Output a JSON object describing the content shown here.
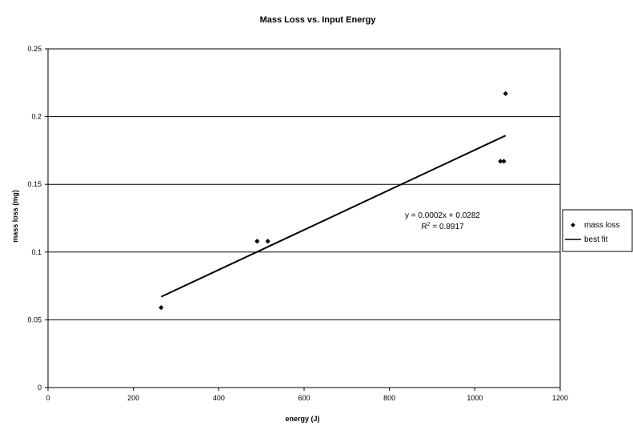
{
  "chart_data": {
    "type": "scatter",
    "title": "Mass Loss vs. Input Energy",
    "xlabel": "energy (J)",
    "ylabel": "mass loss (mg)",
    "xlim": [
      0,
      1200
    ],
    "ylim": [
      0,
      0.25
    ],
    "x_ticks": [
      0,
      200,
      400,
      600,
      800,
      1000,
      1200
    ],
    "y_ticks": [
      0,
      0.05,
      0.1,
      0.15,
      0.2,
      0.25
    ],
    "x_tick_labels": [
      "0",
      "200",
      "400",
      "600",
      "800",
      "1000",
      "1200"
    ],
    "y_tick_labels": [
      "0",
      "0.05",
      "0.1",
      "0.15",
      "0.2",
      "0.25"
    ],
    "grid": "horizontal",
    "legend_position": "right",
    "series": [
      {
        "name": "mass loss",
        "kind": "points",
        "color": "#000000",
        "points": [
          {
            "x": 265,
            "y": 0.059
          },
          {
            "x": 490,
            "y": 0.108
          },
          {
            "x": 515,
            "y": 0.108
          },
          {
            "x": 1060,
            "y": 0.167
          },
          {
            "x": 1068,
            "y": 0.167
          },
          {
            "x": 1072,
            "y": 0.217
          }
        ]
      },
      {
        "name": "best fit",
        "kind": "line",
        "color": "#000000",
        "points": [
          {
            "x": 265,
            "y": 0.067
          },
          {
            "x": 1072,
            "y": 0.186
          }
        ]
      }
    ],
    "annotation": {
      "equation": "y = 0.0002x + 0.0282",
      "r2_prefix": "R",
      "r2_sup": "2",
      "r2_value": " = 0.8917"
    }
  }
}
